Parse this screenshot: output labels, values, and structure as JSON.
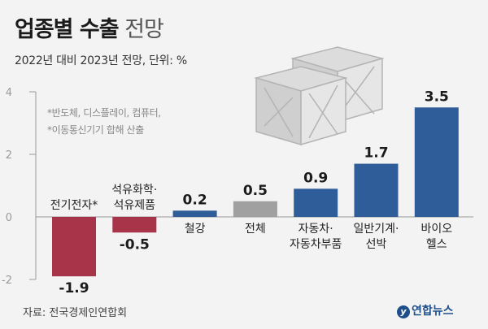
{
  "title_bold": "업종별 수출",
  "title_light": "전망",
  "subtitle": "2022년 대비 2023년 전망, 단위: %",
  "notes": [
    "*반도체, 디스플레이, 컴퓨터,",
    "*이동통신기기 합해 산출"
  ],
  "source": "자료: 전국경제인연합회",
  "logo": "연합뉴스",
  "colors": {
    "positive": "#2f5d99",
    "negative": "#a8344a",
    "total": "#a0a0a0",
    "axis": "#9a9a9a"
  },
  "chart_data": {
    "type": "bar",
    "categories": [
      "전기전자*",
      "석유화학·석유제품",
      "철강",
      "전체",
      "자동차·자동차부품",
      "일반기계·선박",
      "바이오 헬스"
    ],
    "category_lines": [
      [
        "전기전자*"
      ],
      [
        "석유화학·",
        "석유제품"
      ],
      [
        "철강"
      ],
      [
        "전체"
      ],
      [
        "자동차·",
        "자동차부품"
      ],
      [
        "일반기계·",
        "선박"
      ],
      [
        "바이오",
        "헬스"
      ]
    ],
    "values": [
      -1.9,
      -0.5,
      0.2,
      0.5,
      0.9,
      1.7,
      3.5
    ],
    "value_labels": [
      "-1.9",
      "-0.5",
      "0.2",
      "0.5",
      "0.9",
      "1.7",
      "3.5"
    ],
    "highlight_index": 3,
    "ylim": [
      -2,
      4
    ],
    "yticks": [
      -2,
      0,
      2,
      4
    ],
    "ytick_labels": [
      "-2",
      "0",
      "2",
      "4"
    ],
    "xlabel": "",
    "ylabel": ""
  }
}
